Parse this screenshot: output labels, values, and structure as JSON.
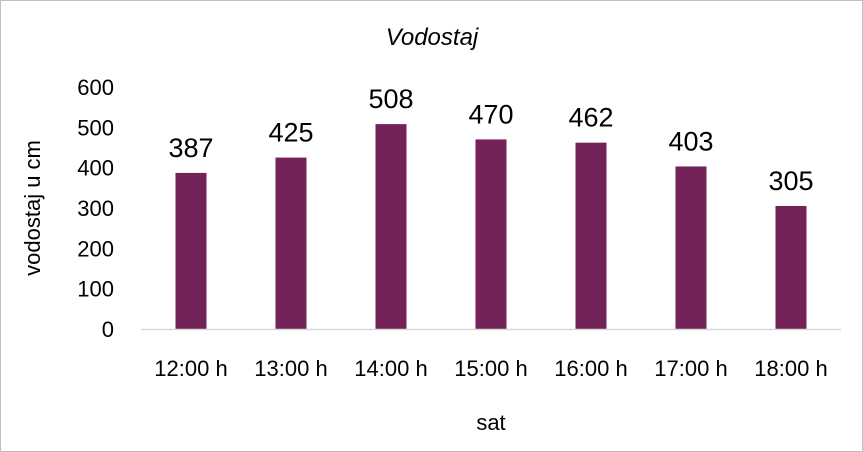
{
  "chart_data": {
    "type": "bar",
    "title": "Vodostaj",
    "xlabel": "sat",
    "ylabel": "vodostaj u cm",
    "categories": [
      "12:00 h",
      "13:00 h",
      "14:00 h",
      "15:00 h",
      "16:00 h",
      "17:00 h",
      "18:00 h"
    ],
    "values": [
      387,
      425,
      508,
      470,
      462,
      403,
      305
    ],
    "ylim": [
      0,
      600
    ],
    "yticks": [
      "0",
      "100",
      "200",
      "300",
      "400",
      "500",
      "600"
    ],
    "grid": false,
    "legend": "none",
    "bar_color": "#722257",
    "axis_color": "#d9d9d9"
  }
}
